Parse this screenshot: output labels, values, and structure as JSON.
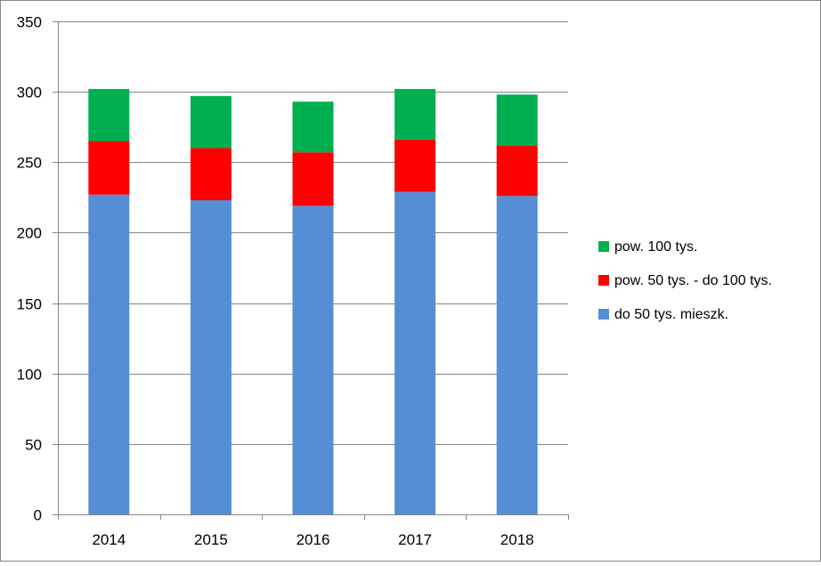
{
  "chart_data": {
    "type": "bar",
    "stacked": true,
    "categories": [
      "2014",
      "2015",
      "2016",
      "2017",
      "2018"
    ],
    "series": [
      {
        "name": "do 50 tys. mieszk.",
        "color": "#558ed5",
        "values": [
          227,
          223,
          219,
          229,
          226
        ]
      },
      {
        "name": "pow. 50 tys. - do 100 tys.",
        "color": "#ff0000",
        "values": [
          38,
          37,
          38,
          37,
          36
        ]
      },
      {
        "name": "pow. 100 tys.",
        "color": "#00b050",
        "values": [
          37,
          37,
          36,
          36,
          36
        ]
      }
    ],
    "ylim": [
      0,
      350
    ],
    "yticks": [
      0,
      50,
      100,
      150,
      200,
      250,
      300,
      350
    ],
    "grid": true,
    "legend_position": "right"
  }
}
